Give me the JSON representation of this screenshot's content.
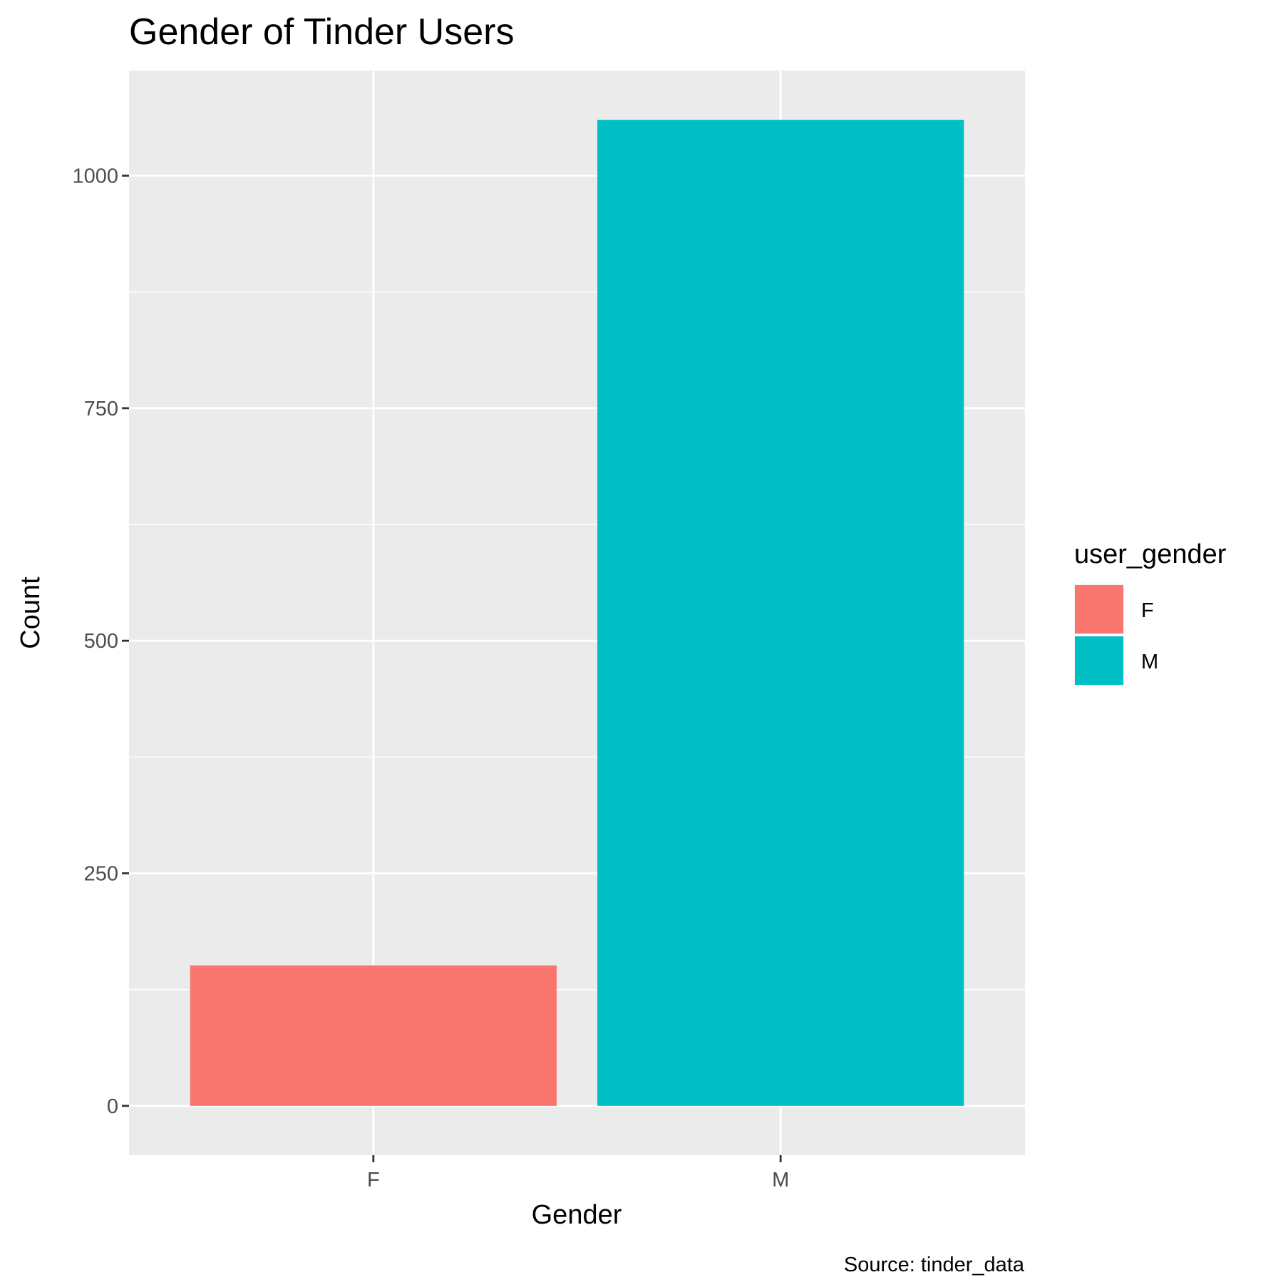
{
  "chart_data": {
    "type": "bar",
    "title": "Gender of Tinder Users",
    "xlabel": "Gender",
    "ylabel": "Count",
    "caption": "Source: tinder_data",
    "categories": [
      "F",
      "M"
    ],
    "values": [
      151,
      1060
    ],
    "colors": [
      "#F8766D",
      "#00BFC4"
    ],
    "ylim": [
      -53,
      1113
    ],
    "y_ticks": [
      0,
      250,
      500,
      750,
      1000
    ],
    "y_minor_ticks": [
      125,
      375,
      625,
      875
    ],
    "y_tick_labels": [
      "0",
      "250",
      "500",
      "750",
      "1000"
    ],
    "grid": true,
    "panel_background": "#EBEBEB",
    "legend": {
      "title": "user_gender",
      "position": "right",
      "entries": [
        {
          "label": "F",
          "color": "#F8766D"
        },
        {
          "label": "M",
          "color": "#00BFC4"
        }
      ]
    }
  }
}
